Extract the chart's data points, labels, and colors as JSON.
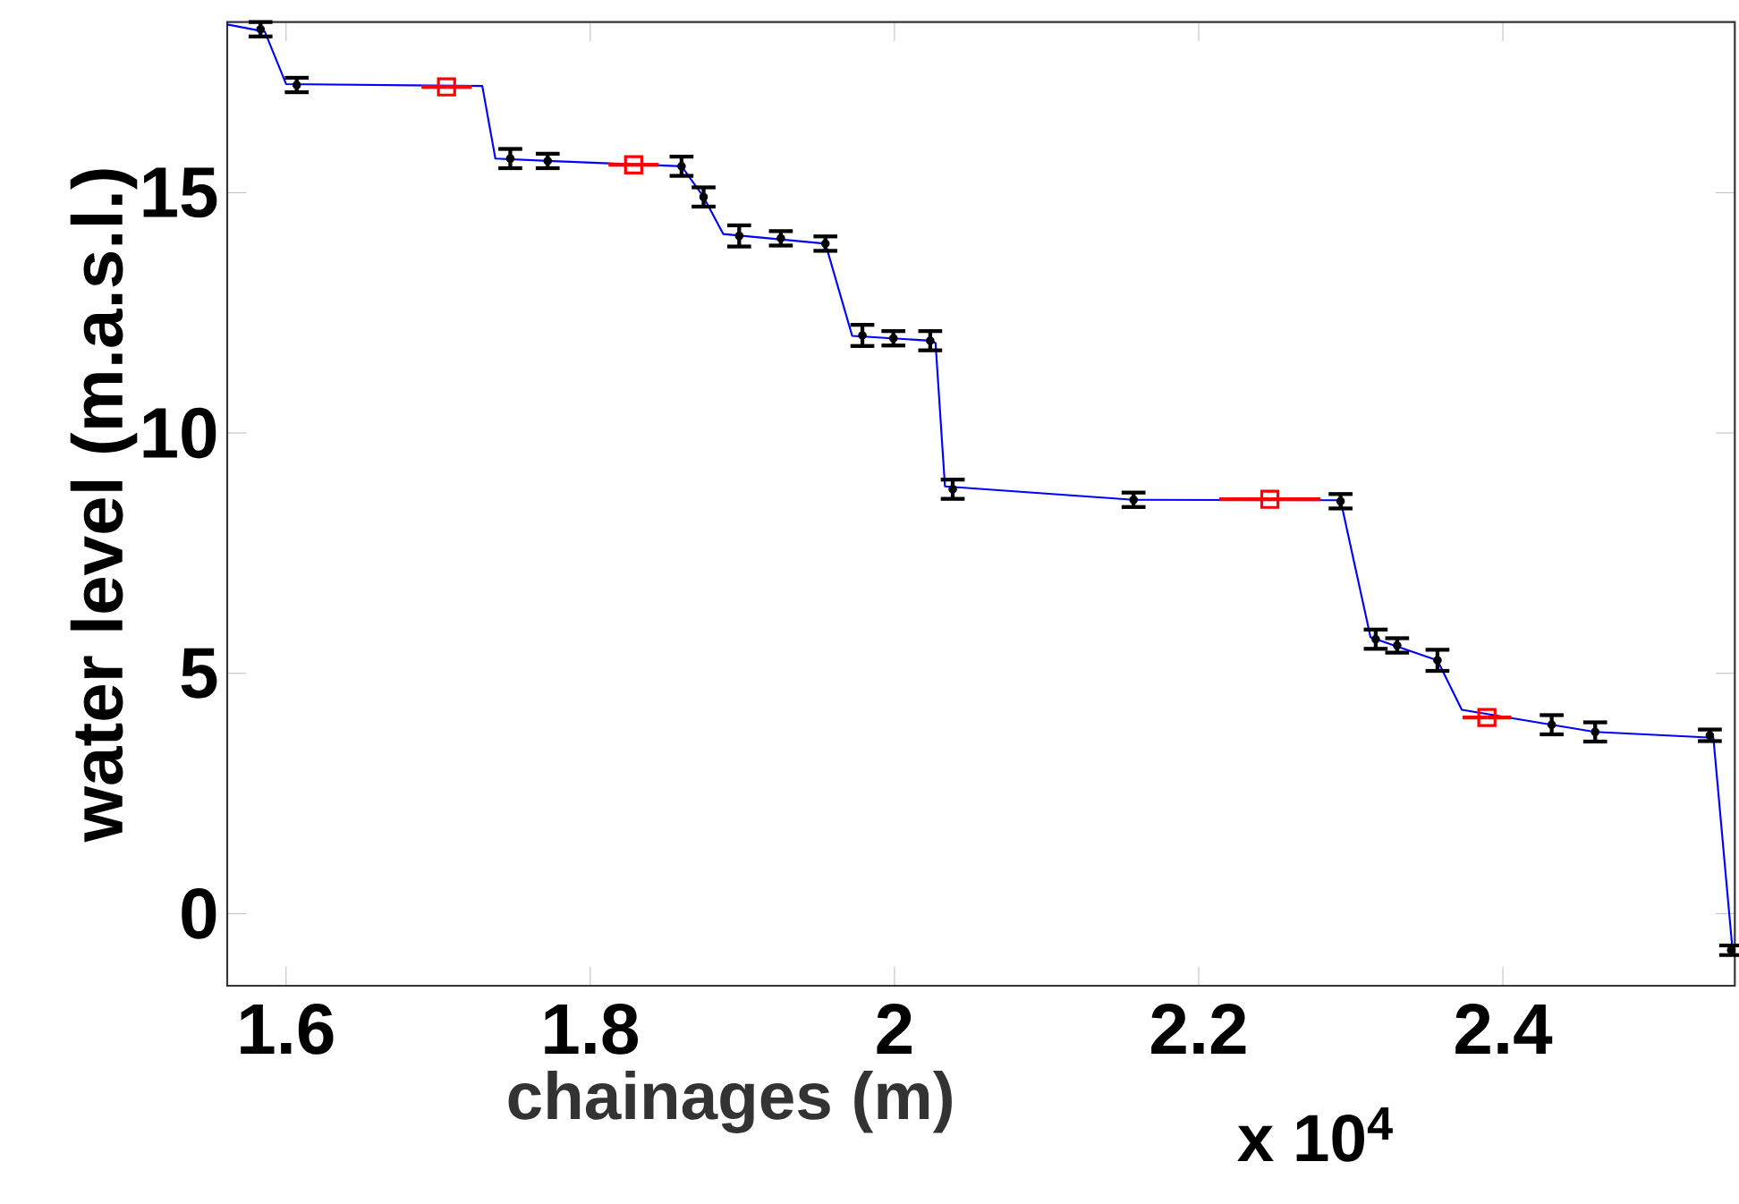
{
  "chart_data": {
    "type": "line",
    "xlabel": "chainages (m)",
    "ylabel": "water level (m.a.s.l.)",
    "annotations": [
      "x 10$^{4}$"
    ],
    "xlim": [
      1.5613,
      2.5525
    ],
    "ylim": [
      -1.5,
      18.55
    ],
    "xticks": [
      1.6,
      1.8,
      2,
      2.2,
      2.4
    ],
    "yticks": [
      0,
      5,
      10,
      15
    ],
    "series": [
      {
        "color": "#0000ff",
        "x": [
          1.5613,
          1.586,
          1.6,
          1.729,
          1.7376,
          1.772,
          1.86,
          1.8745,
          1.8874,
          1.9546,
          1.9722,
          2.0235,
          2.027,
          2.0332,
          2.1572,
          2.2933,
          2.313,
          2.357,
          2.373,
          2.4321,
          2.4607,
          2.5384,
          2.551
        ],
        "values": [
          18.5,
          18.35,
          17.26,
          17.22,
          15.71,
          15.66,
          15.55,
          14.91,
          14.14,
          13.94,
          12.02,
          11.92,
          11.87,
          8.89,
          8.61,
          8.6,
          5.75,
          5.27,
          4.24,
          3.93,
          3.78,
          3.66,
          -0.76
        ]
      },
      {
        "type": "scatter",
        "marker": "circle",
        "color": "#000000",
        "x": [
          1.5832,
          1.607,
          1.7474,
          1.772,
          1.86,
          1.8745,
          1.8979,
          1.9253,
          1.9546,
          1.9789,
          1.9993,
          2.0235,
          2.0383,
          2.1572,
          2.2933,
          2.3164,
          2.3305,
          2.357,
          2.4321,
          2.4607,
          2.5361,
          2.5501
        ],
        "values": [
          18.4,
          17.24,
          15.71,
          15.66,
          15.55,
          14.91,
          14.1,
          14.05,
          13.94,
          12.03,
          11.97,
          11.92,
          8.83,
          8.61,
          8.58,
          5.71,
          5.58,
          5.27,
          3.93,
          3.78,
          3.71,
          -0.76
        ],
        "errors": [
          0.15,
          0.15,
          0.2,
          0.15,
          0.2,
          0.2,
          0.22,
          0.15,
          0.15,
          0.22,
          0.15,
          0.2,
          0.2,
          0.15,
          0.15,
          0.2,
          0.15,
          0.22,
          0.2,
          0.2,
          0.12,
          0.1
        ]
      },
      {
        "type": "scatter",
        "marker": "square",
        "color": "#ff0000",
        "x": [
          1.7055,
          1.8285,
          2.2468,
          2.3895
        ],
        "values": [
          17.2,
          15.58,
          8.62,
          4.08
        ],
        "xerrors": [
          0.0165,
          0.0165,
          0.0333,
          0.016
        ]
      }
    ]
  }
}
